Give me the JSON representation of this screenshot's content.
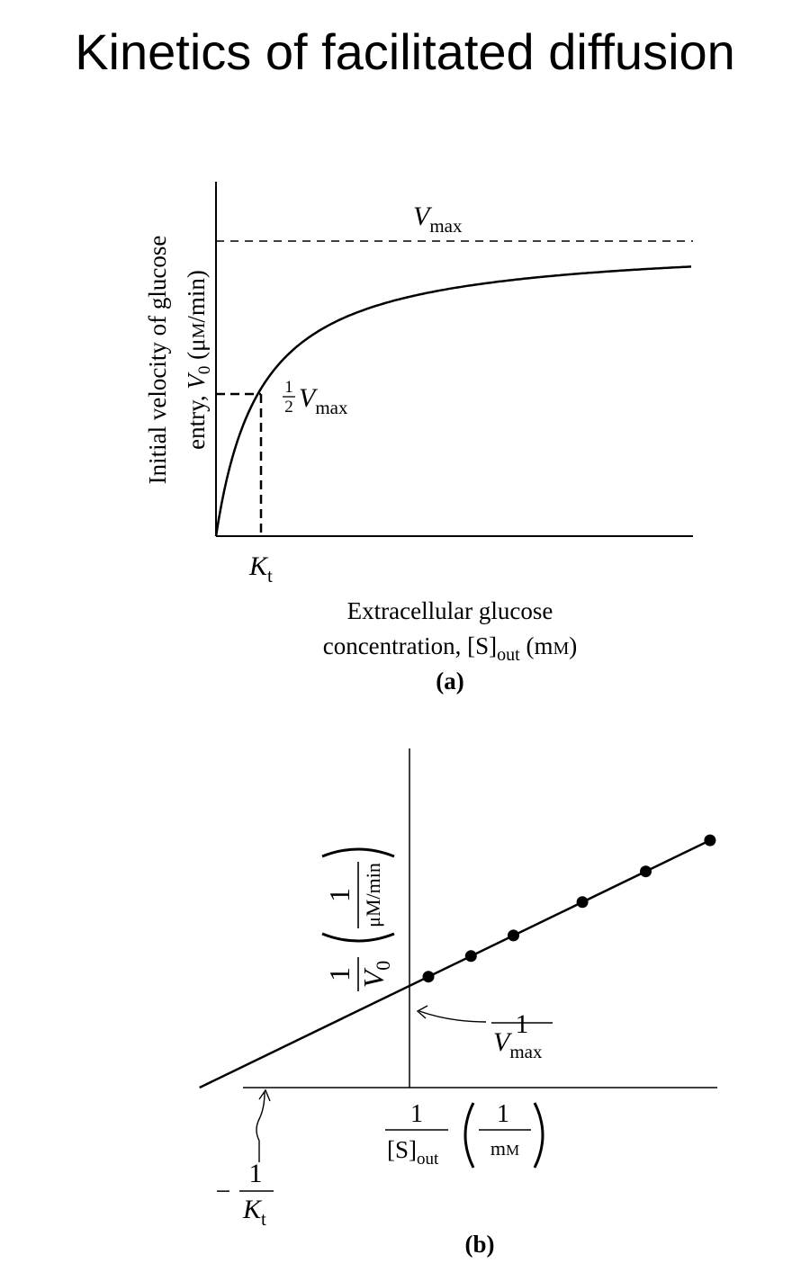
{
  "title": "Kinetics of facilitated diffusion",
  "chart_data": [
    {
      "panel": "(a)",
      "type": "line",
      "curve": "hyperbolic saturation",
      "ylabel_line1": "Initial velocity of glucose",
      "ylabel_line2_pre": "entry, ",
      "ylabel_line2_var": "V",
      "ylabel_line2_sub": "0",
      "ylabel_line2_unit": " (μ",
      "ylabel_line2_unit_sc": "M",
      "ylabel_line2_unit_end": "/min)",
      "xlabel_line1": "Extracellular glucose",
      "xlabel_line2_pre": "concentration, [S]",
      "xlabel_line2_sub": "out",
      "xlabel_line2_unit": " (m",
      "xlabel_line2_unit_sc": "M",
      "xlabel_line2_unit_end": ")",
      "vmax_label": "V",
      "vmax_sub": "max",
      "half_num": "1",
      "half_den": "2",
      "half_label": "V",
      "half_sub": "max",
      "kt_label": "K",
      "kt_sub": "t"
    },
    {
      "panel": "(b)",
      "type": "scatter",
      "fit": "linear",
      "points": [
        [
          0.2,
          0.34
        ],
        [
          0.65,
          0.4
        ],
        [
          1.1,
          0.46
        ],
        [
          1.83,
          0.55
        ],
        [
          2.5,
          0.64
        ],
        [
          3.18,
          0.73
        ]
      ],
      "intercept": 0.3,
      "slope": 0.135,
      "x_range": [
        -1.75,
        3.25
      ],
      "y_range": [
        0,
        1.0
      ],
      "ylabel_num": "1",
      "ylabel_den_var": "V",
      "ylabel_den_sub": "0",
      "ylabel_unit_num": "1",
      "ylabel_unit_den": "μM/min",
      "xlabel_num": "1",
      "xlabel_den": "[S]",
      "xlabel_den_sub": "out",
      "xlabel_unit_num": "1",
      "xlabel_unit_den_pre": "m",
      "xlabel_unit_den_sc": "M",
      "yint_num": "1",
      "yint_den": "V",
      "yint_sub": "max",
      "xint_minus": "−",
      "xint_num": "1",
      "xint_den": "K",
      "xint_sub": "t"
    }
  ]
}
